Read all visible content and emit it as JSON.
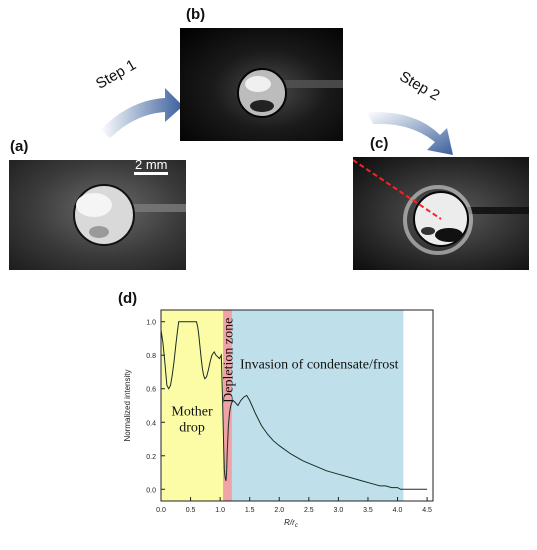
{
  "panels": {
    "a": "(a)",
    "b": "(b)",
    "c": "(c)",
    "d": "(d)"
  },
  "steps": {
    "step1": "Step 1",
    "step2": "Step 2"
  },
  "scale_bar": "2 mm",
  "chart_data": {
    "type": "line",
    "xlabel": "R/r_c",
    "xlabel_main": "R/r",
    "xlabel_sub": "c",
    "ylabel": "Normalized intensity",
    "xlim": [
      0.0,
      4.6
    ],
    "ylim": [
      -0.07,
      1.07
    ],
    "xticks": [
      "0.0",
      "0.5",
      "1.0",
      "1.5",
      "2.0",
      "2.5",
      "3.0",
      "3.5",
      "4.0",
      "4.5"
    ],
    "yticks": [
      "0.0",
      "0.2",
      "0.4",
      "0.6",
      "0.8",
      "1.0"
    ],
    "regions": [
      {
        "label_lines": [
          "Mother",
          "drop"
        ],
        "x_start": 0.0,
        "x_end": 1.05,
        "color": "#fdfca6"
      },
      {
        "label": "Depletion zone",
        "x_start": 1.05,
        "x_end": 1.2,
        "color": "#f0a3a6"
      },
      {
        "label": "Invasion of condensate/frost",
        "x_start": 1.2,
        "x_end": 4.1,
        "color": "#bfe0ea"
      }
    ],
    "series": [
      {
        "x": [
          0.0,
          0.03,
          0.06,
          0.08,
          0.1,
          0.13,
          0.16,
          0.19,
          0.22,
          0.25,
          0.28,
          0.3,
          0.35,
          0.4,
          0.45,
          0.5,
          0.55,
          0.6,
          0.62,
          0.64,
          0.66,
          0.68,
          0.7,
          0.72,
          0.74,
          0.77,
          0.8,
          0.83,
          0.86,
          0.9,
          0.93,
          0.96,
          0.99,
          1.02,
          1.04,
          1.06,
          1.07,
          1.08,
          1.09,
          1.1,
          1.11,
          1.12,
          1.14,
          1.16,
          1.18,
          1.2,
          1.22,
          1.25,
          1.3,
          1.35,
          1.4,
          1.45,
          1.5,
          1.6,
          1.7,
          1.8,
          1.9,
          2.0,
          2.2,
          2.4,
          2.6,
          2.8,
          3.0,
          3.2,
          3.4,
          3.6,
          3.7,
          3.8,
          3.9,
          4.0,
          4.05,
          4.1,
          4.2,
          4.3,
          4.4,
          4.5
        ],
        "y": [
          0.95,
          0.88,
          0.78,
          0.7,
          0.62,
          0.6,
          0.62,
          0.68,
          0.76,
          0.86,
          0.95,
          1.0,
          1.0,
          1.0,
          1.0,
          1.0,
          1.0,
          1.0,
          0.97,
          0.92,
          0.85,
          0.78,
          0.72,
          0.68,
          0.66,
          0.67,
          0.71,
          0.76,
          0.8,
          0.82,
          0.8,
          0.79,
          0.78,
          0.8,
          0.55,
          0.25,
          0.12,
          0.08,
          0.06,
          0.05,
          0.1,
          0.22,
          0.38,
          0.46,
          0.5,
          0.52,
          0.53,
          0.52,
          0.5,
          0.53,
          0.55,
          0.56,
          0.53,
          0.45,
          0.38,
          0.33,
          0.29,
          0.26,
          0.21,
          0.17,
          0.14,
          0.11,
          0.09,
          0.07,
          0.05,
          0.03,
          0.02,
          0.02,
          0.01,
          0.01,
          0.0,
          0.0,
          0.0,
          0.0,
          0.0,
          0.0
        ]
      }
    ]
  }
}
